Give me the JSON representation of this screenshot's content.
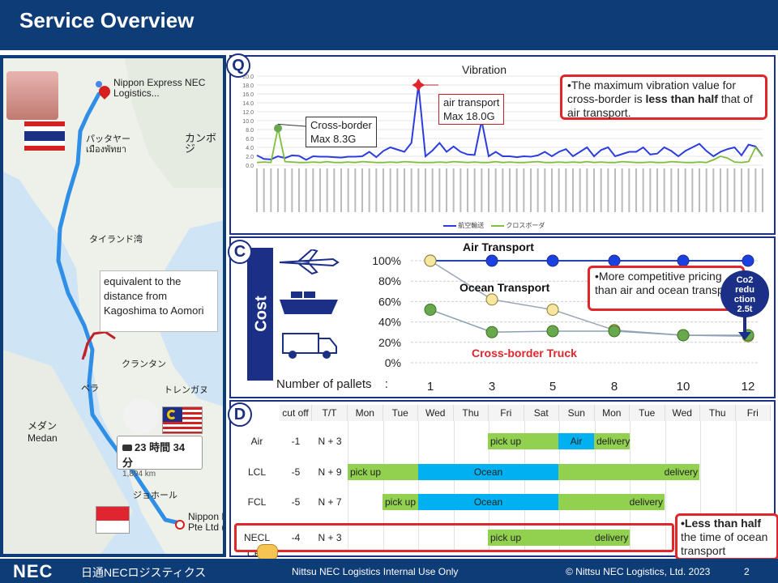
{
  "header": {
    "title": "Service Overview"
  },
  "footer": {
    "logo": "NEC",
    "company_jp": "日通NECロジスティクス",
    "internal": "Nittsu NEC Logistics Internal Use Only",
    "copyright": "© Nittsu NEC Logistics, Ltd. 2023",
    "page": "2"
  },
  "map": {
    "origin_name": "Nippon Express NEC Logistics...",
    "pattaya": "パッタヤー\nเมืองพัทยา",
    "cambodia": "カンボジ",
    "gulf": "タイランド湾",
    "kelantan": "クランタン",
    "terengganu": "トレンガヌ",
    "perak": "ペラ",
    "medan_jp": "メダン",
    "medan": "Medan",
    "johor": "ジョホール",
    "dest_name": "Nippon E\nPte Ltd (",
    "distance_note": "equivalent to the distance from Kagoshima to Aomori",
    "route_time": "23 時間 34 分",
    "route_distance": "1,894 km",
    "colors": {
      "route": "#2f8ee6",
      "border_segment": "#c0222a"
    }
  },
  "panel_q": {
    "badge": "Q",
    "title": "Vibration",
    "callout_pre": "•The maximum vibration value for cross-border is ",
    "callout_bold": "less than half",
    "callout_post": " that of air transport.",
    "cross_border_label": "Cross-border\nMax 8.3G",
    "air_label": "air transport\nMax 18.0G",
    "legend_air": "航空輸送",
    "legend_cross": "クロスボーダ"
  },
  "chart_data": [
    {
      "type": "line",
      "title": "Vibration",
      "ylim": [
        0,
        20
      ],
      "yticks": [
        "0.0",
        "2.0",
        "4.0",
        "6.0",
        "8.0",
        "10.0",
        "12.0",
        "14.0",
        "16.0",
        "18.0",
        "20.0"
      ],
      "series": [
        {
          "name": "航空輸送",
          "color": "#2b3de0",
          "values": [
            2.2,
            1.4,
            1.3,
            2.0,
            1.6,
            2.2,
            2.1,
            1.2,
            2.0,
            1.9,
            1.9,
            1.8,
            1.7,
            1.9,
            1.9,
            2.0,
            3.0,
            1.8,
            3.2,
            4.0,
            3.5,
            3.0,
            5.0,
            18.0,
            2.0,
            3.3,
            5.0,
            3.0,
            4.2,
            3.0,
            2.4,
            2.3,
            10.0,
            2.0,
            3.0,
            2.0,
            2.0,
            1.8,
            2.0,
            1.9,
            2.2,
            3.0,
            2.0,
            3.0,
            3.6,
            2.0,
            3.0,
            4.0,
            2.0,
            3.4,
            4.0,
            2.0,
            2.5,
            3.0,
            3.0,
            4.0,
            2.4,
            2.6,
            4.0,
            3.2,
            2.0,
            3.2,
            4.0,
            4.8,
            3.2,
            2.0,
            3.0,
            3.6,
            4.0,
            2.2,
            4.6,
            4.2,
            2.0
          ]
        },
        {
          "name": "クロスボーダ",
          "color": "#7fbf3a",
          "values": [
            0.6,
            0.7,
            0.6,
            8.3,
            0.8,
            0.7,
            0.6,
            0.6,
            0.7,
            0.6,
            0.8,
            0.6,
            0.6,
            0.7,
            0.6,
            0.8,
            0.7,
            0.6,
            0.6,
            0.7,
            0.6,
            0.8,
            0.7,
            0.6,
            0.6,
            0.6,
            0.7,
            0.6,
            0.8,
            0.7,
            0.6,
            0.7,
            0.6,
            0.6,
            0.8,
            0.6,
            0.7,
            0.6,
            0.6,
            0.7,
            0.8,
            0.6,
            0.6,
            0.7,
            0.6,
            0.7,
            0.6,
            0.8,
            0.6,
            0.7,
            0.6,
            0.6,
            0.8,
            0.7,
            0.6,
            0.6,
            0.7,
            0.6,
            0.6,
            0.8,
            0.7,
            0.6,
            0.6,
            0.7,
            0.6,
            1.2,
            2.0,
            1.6,
            0.7,
            0.6,
            0.8,
            4.0,
            2.0
          ]
        }
      ]
    },
    {
      "type": "line",
      "categories": [
        "1",
        "3",
        "5",
        "8",
        "10",
        "12"
      ],
      "xlabel": "Number of pallets",
      "yticks": [
        "0%",
        "20%",
        "40%",
        "60%",
        "80%",
        "100%"
      ],
      "ylim": [
        0,
        100
      ],
      "series": [
        {
          "name": "Air Transport",
          "color": "#1c3fe0",
          "values": [
            100,
            100,
            100,
            100,
            100,
            100
          ]
        },
        {
          "name": "Ocean Transport",
          "color": "#f6e6a0",
          "values": [
            100,
            62,
            52,
            32,
            27,
            26
          ]
        },
        {
          "name": "Cross-border Truck",
          "color": "#6aa84f",
          "values": [
            52,
            30,
            31,
            31,
            27,
            27
          ]
        }
      ]
    }
  ],
  "panel_c": {
    "badge": "C",
    "cost_label": "Cost",
    "air_label": "Air Transport",
    "ocean_label": "Ocean Transport",
    "truck_label": "Cross-border Truck",
    "callout": "•More competitive pricing than air and ocean transport",
    "co2": "Co2\nredu\nction\n2.5t",
    "pallet_label": "Number of pallets",
    "colon": ":"
  },
  "panel_d": {
    "badge": "D",
    "col_cutoff": "cut off",
    "col_tt": "T/T",
    "days": [
      "Mon",
      "Tue",
      "Wed",
      "Thu",
      "Fri",
      "Sat",
      "Sun",
      "Mon",
      "Tue",
      "Wed",
      "Thu",
      "Fri"
    ],
    "rows": [
      {
        "mode": "Air",
        "cutoff": "-1",
        "tt": "N + 3"
      },
      {
        "mode": "LCL",
        "cutoff": "-5",
        "tt": "N + 9"
      },
      {
        "mode": "FCL",
        "cutoff": "-5",
        "tt": "N + 7"
      },
      {
        "mode": "NECL CBT",
        "cutoff": "-4",
        "tt": "N + 3"
      }
    ],
    "bars": {
      "pickup": "pick up",
      "air": "Air",
      "delivery": "delivery",
      "ocean": "Ocean"
    },
    "callout_bold": "•Less than half",
    "callout_rest": "the time of ocean transport",
    "colors": {
      "green": "#92d050",
      "blue": "#00b0f0"
    }
  }
}
